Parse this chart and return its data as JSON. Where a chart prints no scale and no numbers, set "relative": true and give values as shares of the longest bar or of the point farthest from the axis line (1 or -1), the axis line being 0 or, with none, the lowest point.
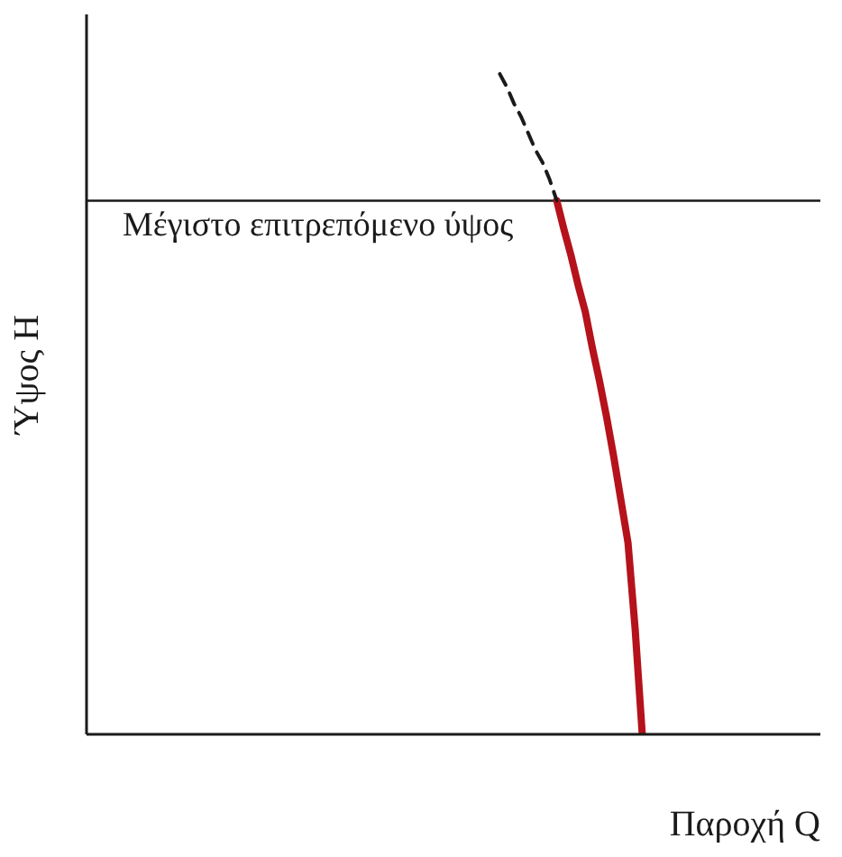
{
  "chart_data": {
    "type": "line",
    "relative": true,
    "xlabel": "Παροχή Q",
    "ylabel": "Ύψος H",
    "grid": false,
    "legend": false,
    "marker": "none",
    "categories": [
      null,
      null,
      null,
      null,
      null,
      null,
      null,
      null,
      null,
      null,
      null,
      null,
      null,
      null,
      null,
      null,
      null,
      null,
      null,
      null,
      null,
      null,
      null,
      null,
      null,
      null,
      null,
      null,
      null,
      null,
      null,
      null,
      null,
      null,
      null,
      null,
      null,
      null,
      null,
      null,
      null,
      null,
      null,
      null,
      null,
      null,
      null,
      null,
      null,
      null,
      null,
      null,
      null,
      null,
      null,
      null,
      null,
      null,
      null,
      null,
      null,
      null,
      null,
      null,
      null,
      null,
      null,
      null,
      null,
      null,
      null,
      null,
      null,
      null,
      null,
      null,
      null,
      null,
      null,
      null,
      null,
      null,
      null,
      null,
      null,
      null,
      null,
      null,
      null,
      null,
      null,
      null,
      null,
      null,
      null,
      null,
      null,
      null,
      null,
      null,
      null
    ],
    "series": [
      {
        "color": "#b5121b",
        "line_style": "solid",
        "values": [
          null,
          null,
          null,
          null,
          null,
          null,
          null,
          null,
          null,
          null,
          null,
          null,
          null,
          null,
          null,
          null,
          null,
          null,
          null,
          null,
          null,
          null,
          null,
          null,
          null,
          null,
          null,
          null,
          null,
          null,
          null,
          null,
          null,
          null,
          null,
          null,
          null,
          null,
          null,
          null,
          null,
          null,
          null,
          null,
          null,
          null,
          null,
          null,
          null,
          null,
          null,
          null,
          null,
          null,
          null,
          null,
          null,
          null,
          null,
          null,
          null,
          null,
          null,
          null,
          null,
          null,
          0.808,
          0.765,
          0.725,
          0.68,
          0.64,
          0.585,
          0.535,
          0.48,
          0.42,
          0.355,
          0.29,
          0.16,
          0,
          null,
          null,
          null,
          null,
          null,
          null,
          null,
          null,
          null,
          null,
          null,
          null,
          null,
          null,
          null,
          null,
          null,
          null,
          null,
          null,
          null,
          null
        ]
      },
      {
        "color": "#1a1a1a",
        "line_style": "dashed",
        "values": [
          null,
          null,
          null,
          null,
          null,
          null,
          null,
          null,
          null,
          null,
          null,
          null,
          null,
          null,
          null,
          null,
          null,
          null,
          null,
          null,
          null,
          null,
          null,
          null,
          null,
          null,
          null,
          null,
          null,
          null,
          null,
          null,
          null,
          null,
          null,
          null,
          null,
          null,
          null,
          null,
          null,
          null,
          null,
          null,
          null,
          null,
          null,
          null,
          null,
          null,
          null,
          null,
          null,
          null,
          null,
          null,
          null,
          null,
          1,
          0.98,
          0.955,
          0.935,
          0.91,
          0.885,
          0.866,
          0.84,
          0.808,
          null,
          null,
          null,
          null,
          null,
          null,
          null,
          null,
          null,
          null,
          null,
          null,
          null,
          null,
          null,
          null,
          null,
          null,
          null,
          null,
          null,
          null,
          null,
          null,
          null,
          null,
          null,
          null,
          null,
          null,
          null,
          null,
          null,
          null
        ]
      }
    ],
    "ref_lines": [
      {
        "axis": "y",
        "value": 0.808,
        "label": "Μέγιστο επιτρεπόμενο ύψος",
        "color": "#1a1a1a"
      }
    ]
  }
}
